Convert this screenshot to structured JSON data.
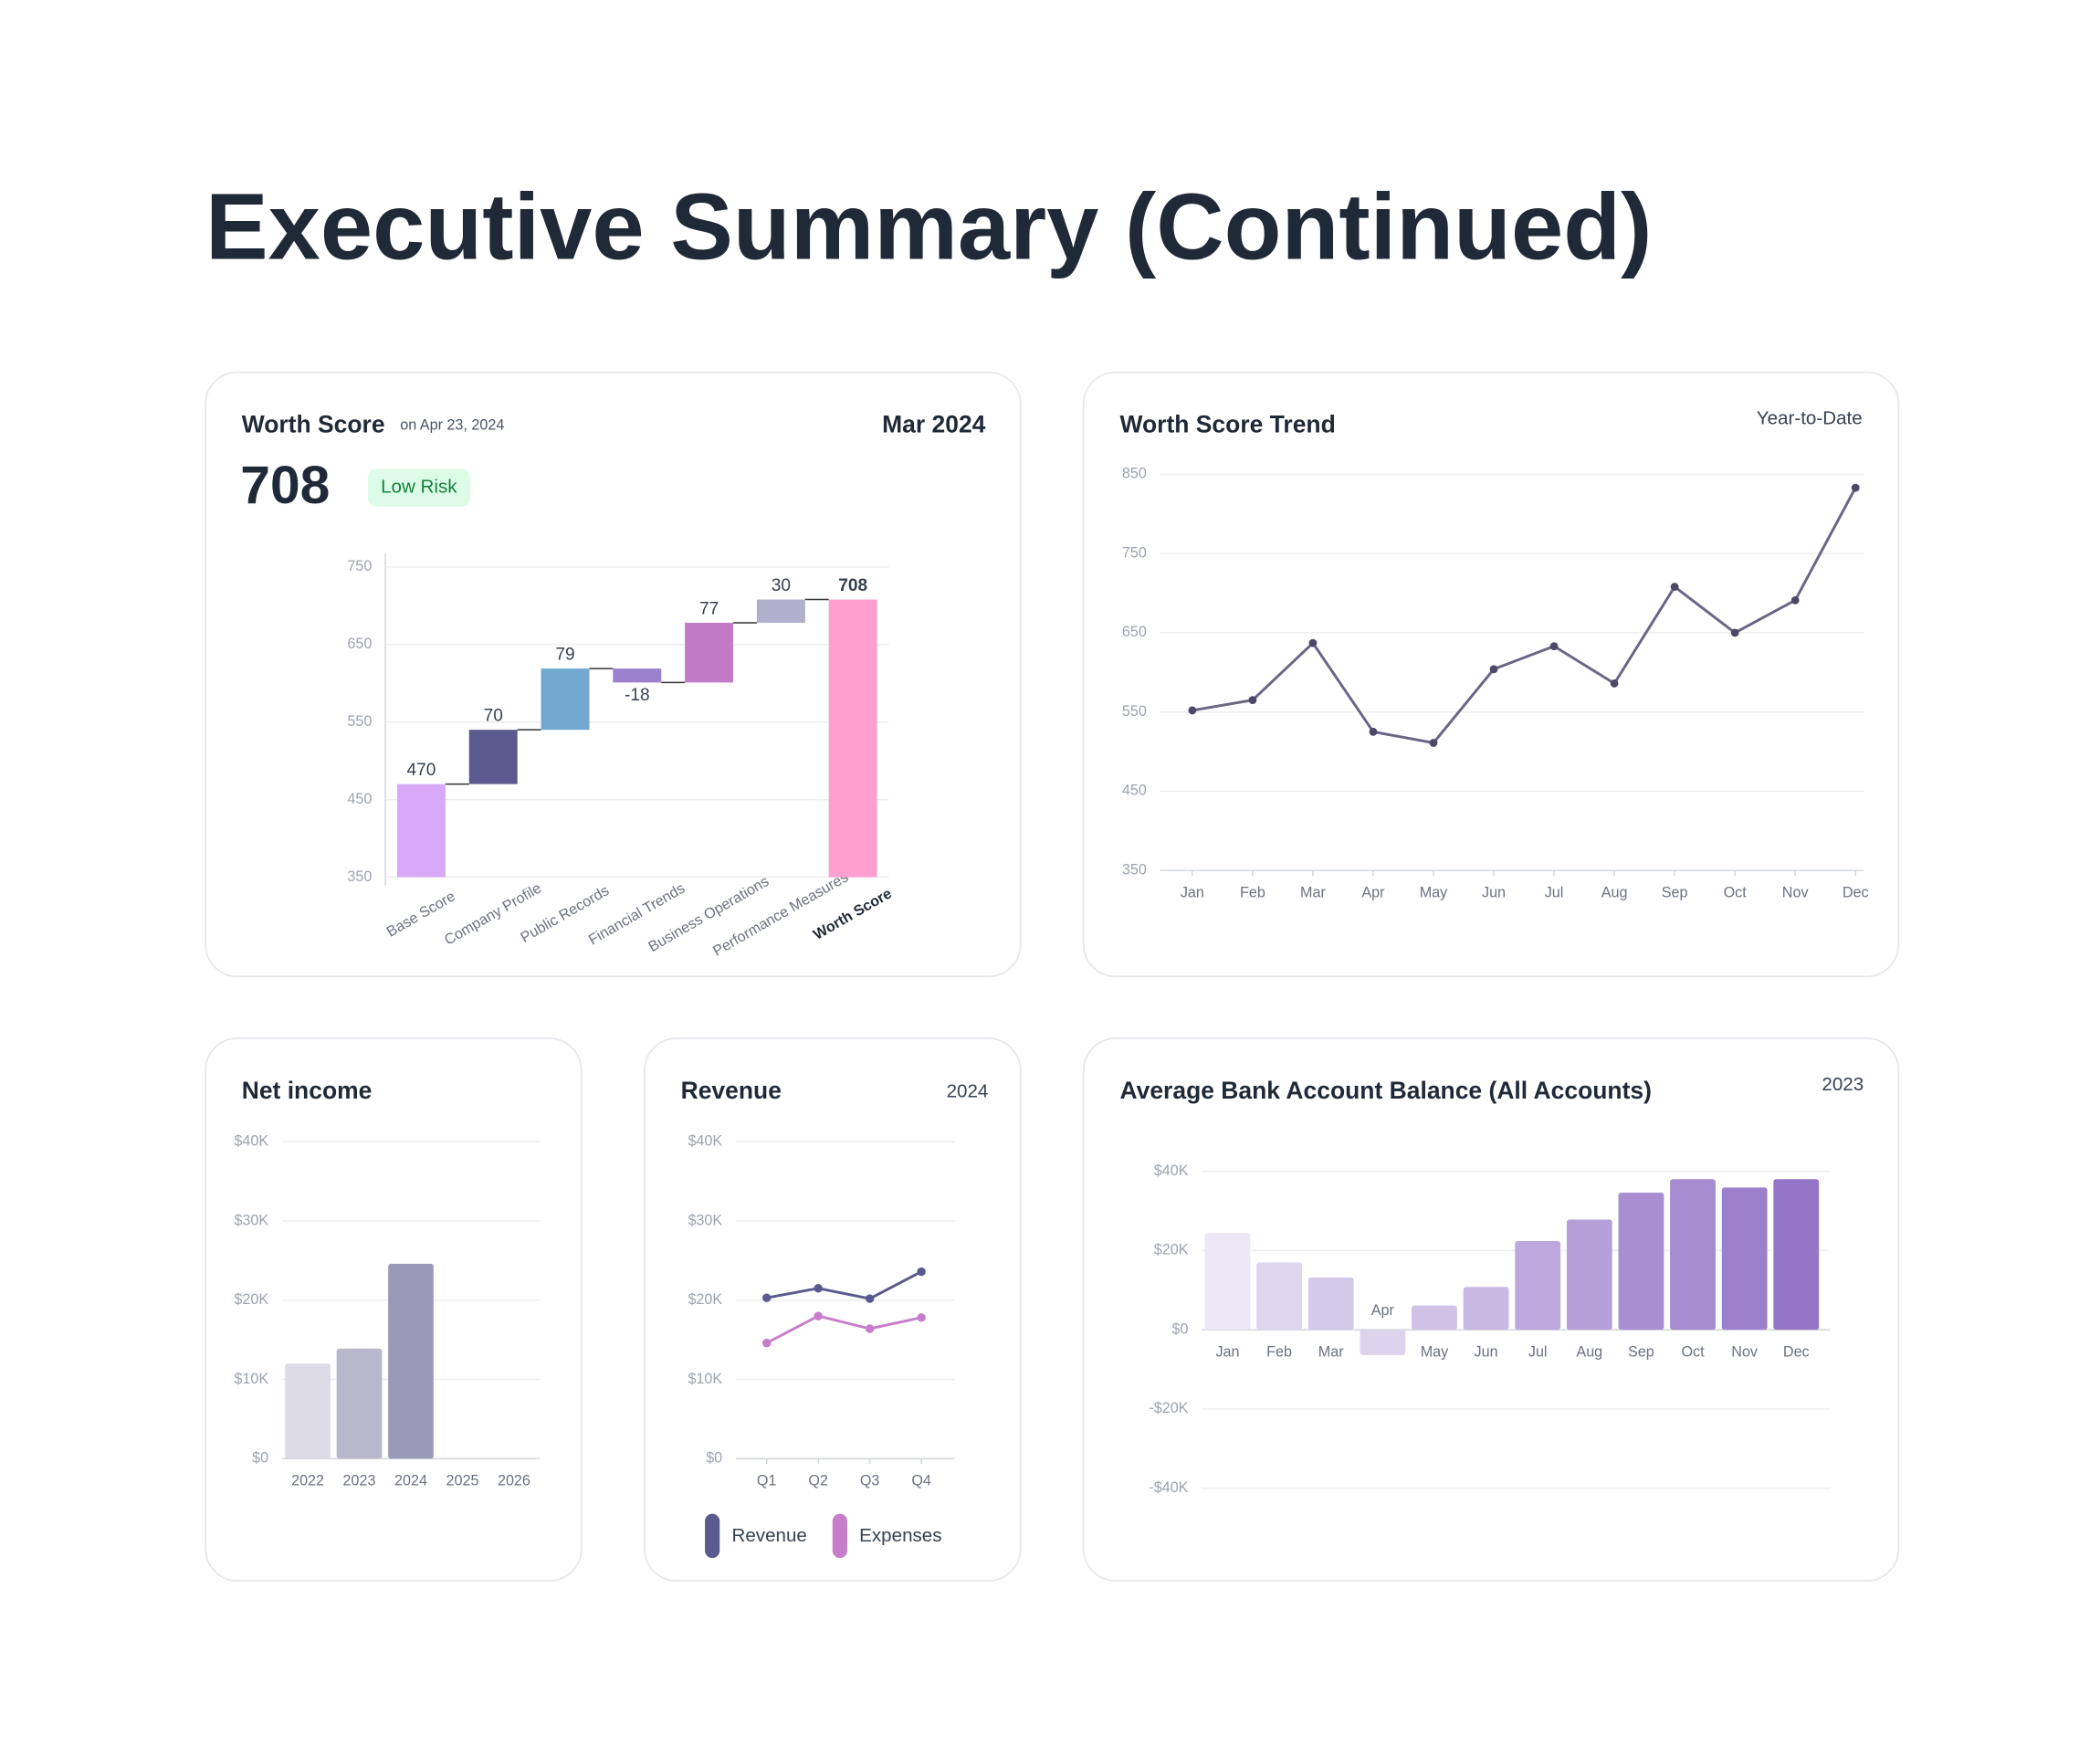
{
  "title": "Executive Summary (Continued)",
  "chart_data": [
    {
      "type": "waterfall",
      "title": "Worth Score",
      "subtitle": "on Apr 23, 2024",
      "period": "Mar 2024",
      "score": 708,
      "risk": "Low Risk",
      "categories": [
        "Base Score",
        "Company Profile",
        "Public Records",
        "Financial Trends",
        "Business Operations",
        "Performance Measures",
        "Worth Score"
      ],
      "values": [
        470,
        70,
        79,
        -18,
        77,
        30,
        708
      ],
      "colors": [
        "#d8a9f8",
        "#5b5a8e",
        "#72a7cf",
        "#9b82cf",
        "#c27ac6",
        "#b0afcc",
        "#ff9fcf"
      ],
      "ylim": [
        350,
        750
      ],
      "yticks": [
        350,
        450,
        550,
        650,
        750
      ],
      "grid": true
    },
    {
      "type": "line",
      "title": "Worth Score Trend",
      "subtitle": "Year-to-Date",
      "categories": [
        "Jan",
        "Feb",
        "Mar",
        "Apr",
        "May",
        "Jun",
        "Jul",
        "Aug",
        "Sep",
        "Oct",
        "Nov",
        "Dec"
      ],
      "values": [
        552,
        565,
        637,
        525,
        511,
        604,
        633,
        586,
        708,
        650,
        691,
        833
      ],
      "color": "#6b6485",
      "ylim": [
        350,
        850
      ],
      "yticks": [
        350,
        450,
        550,
        650,
        750,
        850
      ],
      "grid": true
    },
    {
      "type": "bar",
      "title": "Net income",
      "categories": [
        "2022",
        "2023",
        "2024",
        "2025",
        "2026"
      ],
      "values": [
        12000,
        13900,
        24600,
        null,
        null
      ],
      "colors": [
        "#dcdbe6",
        "#b9b7cc",
        "#9b99ba",
        "#8583aa",
        "#6f6d9a"
      ],
      "ylim": [
        0,
        40000
      ],
      "yticks": [
        {
          "value": 0,
          "label": "$0"
        },
        {
          "value": 10000,
          "label": "$10K"
        },
        {
          "value": 20000,
          "label": "$20K"
        },
        {
          "value": 30000,
          "label": "$30K"
        },
        {
          "value": 40000,
          "label": "$40K"
        }
      ],
      "grid": true
    },
    {
      "type": "multiline",
      "title": "Revenue",
      "subtitle": "2024",
      "categories": [
        "Q1",
        "Q2",
        "Q3",
        "Q4"
      ],
      "series": [
        {
          "name": "Revenue",
          "color": "#5b5a8e",
          "values": [
            20300,
            21500,
            20200,
            23600
          ]
        },
        {
          "name": "Expenses",
          "color": "#c77dcc",
          "values": [
            14600,
            18000,
            16400,
            17800
          ]
        }
      ],
      "ylim": [
        0,
        40000
      ],
      "yticks": [
        {
          "value": 0,
          "label": "$0"
        },
        {
          "value": 10000,
          "label": "$10K"
        },
        {
          "value": 20000,
          "label": "$20K"
        },
        {
          "value": 30000,
          "label": "$30K"
        },
        {
          "value": 40000,
          "label": "$40K"
        }
      ],
      "grid": true
    },
    {
      "type": "bar",
      "title": "Average Bank Account Balance (All Accounts)",
      "subtitle": "2023",
      "categories": [
        "Jan",
        "Feb",
        "Mar",
        "Apr",
        "May",
        "Jun",
        "Jul",
        "Aug",
        "Sep",
        "Oct",
        "Nov",
        "Dec"
      ],
      "values": [
        24400,
        17000,
        13200,
        -6400,
        6100,
        10800,
        22400,
        27800,
        34600,
        38000,
        35900,
        38000
      ],
      "colors": [
        "#ebe7f4",
        "#ddd6ee",
        "#d3c9e8",
        "#dcd3ee",
        "#cfc2e6",
        "#c8b9e3",
        "#bca8dc",
        "#b59fd8",
        "#a98ed2",
        "#a58bd0",
        "#9c80cc",
        "#9575c8"
      ],
      "ylim": [
        -40000,
        40000
      ],
      "yticks": [
        {
          "value": -40000,
          "label": "-$40K"
        },
        {
          "value": -20000,
          "label": "-$20K"
        },
        {
          "value": 0,
          "label": "$0"
        },
        {
          "value": 20000,
          "label": "$20K"
        },
        {
          "value": 40000,
          "label": "$40K"
        }
      ],
      "grid": true
    }
  ]
}
